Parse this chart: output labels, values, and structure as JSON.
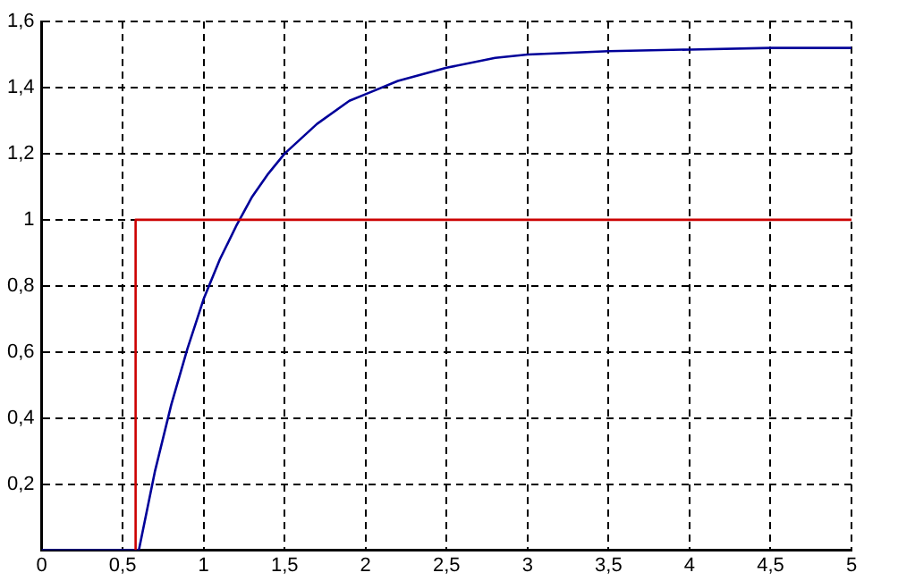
{
  "chart_data": {
    "type": "line",
    "xlim": [
      0,
      5
    ],
    "ylim": [
      0,
      1.6
    ],
    "xticks": [
      0,
      {
        "value": 0.5,
        "label": "0,5"
      },
      1,
      {
        "value": 1.5,
        "label": "1,5"
      },
      2,
      {
        "value": 2.5,
        "label": "2,5"
      },
      3,
      {
        "value": 3.5,
        "label": "3,5"
      },
      4,
      {
        "value": 4.5,
        "label": "4,5"
      },
      5
    ],
    "yticks": [
      {
        "value": 0.2,
        "label": "0,2"
      },
      {
        "value": 0.4,
        "label": "0,4"
      },
      {
        "value": 0.6,
        "label": "0,6"
      },
      {
        "value": 0.8,
        "label": "0,8"
      },
      1,
      {
        "value": 1.2,
        "label": "1,2"
      },
      {
        "value": 1.4,
        "label": "1,4"
      },
      {
        "value": 1.6,
        "label": "1,6"
      }
    ],
    "grid": true,
    "line_style": "solid",
    "marker": "none",
    "legend": false,
    "series": [
      {
        "type": "step",
        "color": "#cc0000",
        "x": [
          0.58,
          5
        ],
        "values": [
          0,
          1
        ]
      },
      {
        "color": "#000099",
        "x": [
          0,
          0.6,
          0.7,
          0.8,
          0.9,
          1.0,
          1.1,
          1.2,
          1.3,
          1.4,
          1.5,
          1.7,
          1.9,
          2.0,
          2.2,
          2.5,
          2.8,
          3.0,
          3.5,
          4.0,
          4.5,
          5.0
        ],
        "values": [
          0,
          0,
          0.24,
          0.44,
          0.61,
          0.76,
          0.88,
          0.98,
          1.07,
          1.14,
          1.2,
          1.29,
          1.36,
          1.38,
          1.42,
          1.46,
          1.49,
          1.5,
          1.51,
          1.515,
          1.52,
          1.52
        ]
      }
    ]
  }
}
